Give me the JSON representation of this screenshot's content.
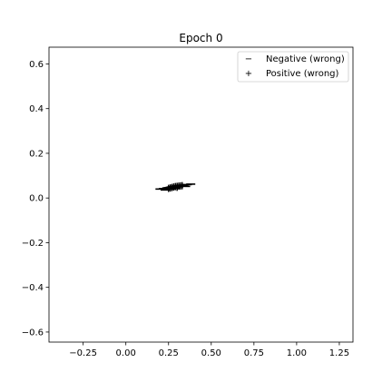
{
  "chart_data": {
    "type": "scatter",
    "title": "Epoch 0",
    "xlabel": "",
    "ylabel": "",
    "xlim": [
      -0.45,
      1.33
    ],
    "ylim": [
      -0.645,
      0.675
    ],
    "xticks": [
      -0.25,
      0.0,
      0.25,
      0.5,
      0.75,
      1.0,
      1.25
    ],
    "xtick_labels": [
      "−0.25",
      "0.00",
      "0.25",
      "0.50",
      "0.75",
      "1.00",
      "1.25"
    ],
    "yticks": [
      -0.6,
      -0.4,
      -0.2,
      0.0,
      0.2,
      0.4,
      0.6
    ],
    "ytick_labels": [
      "−0.6",
      "−0.4",
      "−0.2",
      "0.0",
      "0.2",
      "0.4",
      "0.6"
    ],
    "grid": false,
    "legend_position": "top-right",
    "colors": {
      "negative": "#000000",
      "positive": "#000000"
    },
    "series": [
      {
        "name": "Negative (wrong)",
        "marker": "−",
        "points": [
          [
            0.2,
            0.04
          ],
          [
            0.22,
            0.042
          ],
          [
            0.24,
            0.045
          ],
          [
            0.25,
            0.046
          ],
          [
            0.26,
            0.048
          ],
          [
            0.27,
            0.05
          ],
          [
            0.28,
            0.051
          ],
          [
            0.29,
            0.053
          ],
          [
            0.3,
            0.054
          ],
          [
            0.31,
            0.055
          ],
          [
            0.32,
            0.056
          ],
          [
            0.33,
            0.057
          ],
          [
            0.34,
            0.058
          ],
          [
            0.36,
            0.06
          ],
          [
            0.38,
            0.062
          ],
          [
            0.23,
            0.036
          ],
          [
            0.26,
            0.04
          ],
          [
            0.29,
            0.044
          ],
          [
            0.31,
            0.05
          ],
          [
            0.35,
            0.052
          ]
        ]
      },
      {
        "name": "Positive (wrong)",
        "marker": "+",
        "points": [
          [
            0.25,
            0.043
          ],
          [
            0.27,
            0.047
          ],
          [
            0.28,
            0.049
          ],
          [
            0.29,
            0.051
          ],
          [
            0.3,
            0.052
          ],
          [
            0.31,
            0.053
          ],
          [
            0.32,
            0.054
          ],
          [
            0.33,
            0.055
          ],
          [
            0.26,
            0.045
          ],
          [
            0.3,
            0.048
          ]
        ]
      }
    ]
  }
}
